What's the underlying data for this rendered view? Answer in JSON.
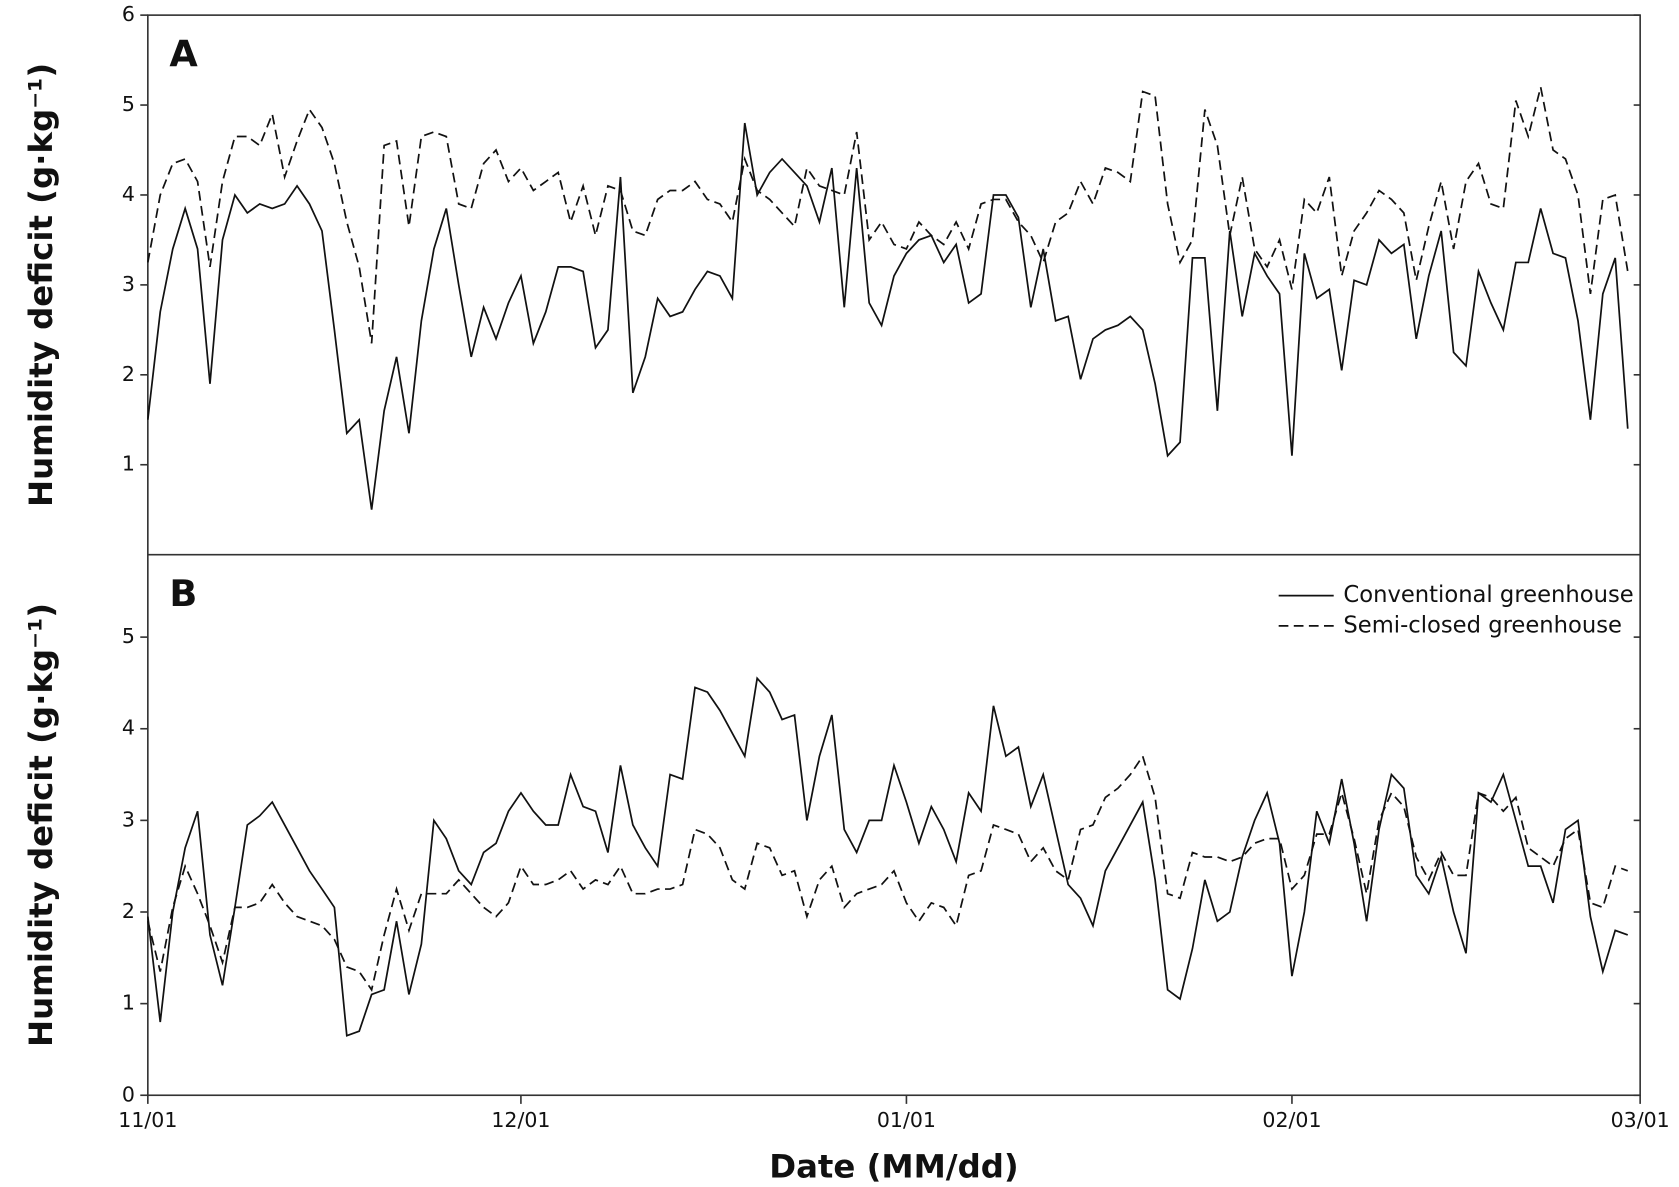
{
  "chart_data": [
    {
      "type": "line",
      "panel_label": "A",
      "y_label": "Humidity deficit (g·kg⁻¹)",
      "x": [
        0,
        1,
        2,
        3,
        4,
        5,
        6,
        7,
        8,
        9,
        10,
        11,
        12,
        13,
        14,
        15,
        16,
        17,
        18,
        19,
        20,
        21,
        22,
        23,
        24,
        25,
        26,
        27,
        28,
        29,
        30,
        31,
        32,
        33,
        34,
        35,
        36,
        37,
        38,
        39,
        40,
        41,
        42,
        43,
        44,
        45,
        46,
        47,
        48,
        49,
        50,
        51,
        52,
        53,
        54,
        55,
        56,
        57,
        58,
        59,
        60,
        61,
        62,
        63,
        64,
        65,
        66,
        67,
        68,
        69,
        70,
        71,
        72,
        73,
        74,
        75,
        76,
        77,
        78,
        79,
        80,
        81,
        82,
        83,
        84,
        85,
        86,
        87,
        88,
        89,
        90,
        91,
        92,
        93,
        94,
        95,
        96,
        97,
        98,
        99,
        100,
        101,
        102,
        103,
        104,
        105,
        106,
        107,
        108,
        109,
        110,
        111,
        112,
        113,
        114,
        115,
        116,
        117,
        118,
        119
      ],
      "xlim": [
        0,
        120
      ],
      "ylim": [
        0,
        6
      ],
      "yticks": [
        1,
        2,
        3,
        4,
        5,
        6
      ],
      "series": [
        {
          "color": "#111111",
          "dashed": false,
          "values": [
            1.5,
            2.7,
            3.4,
            3.85,
            3.4,
            1.9,
            3.5,
            4.0,
            3.8,
            3.9,
            3.85,
            3.9,
            4.1,
            3.9,
            3.6,
            2.5,
            1.35,
            1.5,
            0.5,
            1.6,
            2.2,
            1.35,
            2.6,
            3.4,
            3.85,
            3.0,
            2.2,
            2.75,
            2.4,
            2.8,
            3.1,
            2.35,
            2.7,
            3.2,
            3.2,
            3.15,
            2.3,
            2.5,
            4.2,
            1.8,
            2.2,
            2.85,
            2.65,
            2.7,
            2.95,
            3.15,
            3.1,
            2.85,
            4.8,
            4.0,
            4.25,
            4.4,
            4.25,
            4.1,
            3.7,
            4.3,
            2.75,
            4.3,
            2.8,
            2.55,
            3.1,
            3.35,
            3.5,
            3.55,
            3.25,
            3.45,
            2.8,
            2.9,
            4.0,
            4.0,
            3.75,
            2.75,
            3.4,
            2.6,
            2.65,
            1.95,
            2.4,
            2.5,
            2.55,
            2.65,
            2.5,
            1.9,
            1.1,
            1.25,
            3.3,
            3.3,
            1.6,
            3.6,
            2.65,
            3.35,
            3.1,
            2.9,
            1.1,
            3.35,
            2.85,
            2.95,
            2.05,
            3.05,
            3.0,
            3.5,
            3.35,
            3.45,
            2.4,
            3.1,
            3.6,
            2.25,
            2.1,
            3.15,
            2.8,
            2.5,
            3.25,
            3.25,
            3.85,
            3.35,
            3.3,
            2.6,
            1.5,
            2.9,
            3.3,
            1.4
          ]
        },
        {
          "color": "#111111",
          "dashed": true,
          "values": [
            3.25,
            4.0,
            4.35,
            4.4,
            4.15,
            3.2,
            4.15,
            4.65,
            4.65,
            4.55,
            4.9,
            4.2,
            4.6,
            4.95,
            4.75,
            4.35,
            3.7,
            3.2,
            2.35,
            4.55,
            4.6,
            3.65,
            4.65,
            4.7,
            4.65,
            3.9,
            3.85,
            4.35,
            4.5,
            4.15,
            4.3,
            4.05,
            4.15,
            4.25,
            3.7,
            4.1,
            3.55,
            4.1,
            4.05,
            3.6,
            3.55,
            3.95,
            4.05,
            4.05,
            4.15,
            3.95,
            3.9,
            3.7,
            4.4,
            4.05,
            3.95,
            3.8,
            3.65,
            4.3,
            4.1,
            4.05,
            4.0,
            4.7,
            3.5,
            3.7,
            3.45,
            3.4,
            3.7,
            3.55,
            3.45,
            3.7,
            3.4,
            3.9,
            3.95,
            3.95,
            3.7,
            3.55,
            3.25,
            3.7,
            3.8,
            4.15,
            3.9,
            4.3,
            4.25,
            4.15,
            5.15,
            5.1,
            3.9,
            3.25,
            3.5,
            4.95,
            4.55,
            3.55,
            4.2,
            3.4,
            3.2,
            3.5,
            2.95,
            3.95,
            3.8,
            4.2,
            3.1,
            3.6,
            3.8,
            4.05,
            3.95,
            3.8,
            3.05,
            3.65,
            4.15,
            3.4,
            4.15,
            4.35,
            3.9,
            3.85,
            5.05,
            4.65,
            5.2,
            4.5,
            4.4,
            4.0,
            2.9,
            3.95,
            4.0,
            3.15
          ]
        }
      ]
    },
    {
      "type": "line",
      "panel_label": "B",
      "y_label": "Humidity deficit (g·kg⁻¹)",
      "x_label": "Date (MM/dd)",
      "x": [
        0,
        1,
        2,
        3,
        4,
        5,
        6,
        7,
        8,
        9,
        10,
        11,
        12,
        13,
        14,
        15,
        16,
        17,
        18,
        19,
        20,
        21,
        22,
        23,
        24,
        25,
        26,
        27,
        28,
        29,
        30,
        31,
        32,
        33,
        34,
        35,
        36,
        37,
        38,
        39,
        40,
        41,
        42,
        43,
        44,
        45,
        46,
        47,
        48,
        49,
        50,
        51,
        52,
        53,
        54,
        55,
        56,
        57,
        58,
        59,
        60,
        61,
        62,
        63,
        64,
        65,
        66,
        67,
        68,
        69,
        70,
        71,
        72,
        73,
        74,
        75,
        76,
        77,
        78,
        79,
        80,
        81,
        82,
        83,
        84,
        85,
        86,
        87,
        88,
        89,
        90,
        91,
        92,
        93,
        94,
        95,
        96,
        97,
        98,
        99,
        100,
        101,
        102,
        103,
        104,
        105,
        106,
        107,
        108,
        109,
        110,
        111,
        112,
        113,
        114,
        115,
        116,
        117,
        118,
        119
      ],
      "xlim": [
        0,
        120
      ],
      "xticks": [
        {
          "value": 0,
          "label": "11/01"
        },
        {
          "value": 30,
          "label": "12/01"
        },
        {
          "value": 61,
          "label": "01/01"
        },
        {
          "value": 92,
          "label": "02/01"
        },
        {
          "value": 120,
          "label": "03/01"
        }
      ],
      "ylim": [
        0,
        5.9
      ],
      "yticks": [
        0,
        1,
        2,
        3,
        4,
        5
      ],
      "legend": "upper-right",
      "series": [
        {
          "name": "Conventional greenhouse",
          "color": "#111111",
          "dashed": false,
          "values": [
            1.95,
            0.8,
            2.0,
            2.7,
            3.1,
            1.75,
            1.2,
            2.05,
            2.95,
            3.05,
            3.2,
            2.95,
            2.7,
            2.45,
            2.25,
            2.05,
            0.65,
            0.7,
            1.1,
            1.15,
            1.9,
            1.1,
            1.65,
            3.0,
            2.8,
            2.45,
            2.3,
            2.65,
            2.75,
            3.1,
            3.3,
            3.1,
            2.95,
            2.95,
            3.5,
            3.15,
            3.1,
            2.65,
            3.6,
            2.95,
            2.7,
            2.5,
            3.5,
            3.45,
            4.45,
            4.4,
            4.2,
            3.95,
            3.7,
            4.55,
            4.4,
            4.1,
            4.15,
            3.0,
            3.7,
            4.15,
            2.9,
            2.65,
            3.0,
            3.0,
            3.6,
            3.2,
            2.75,
            3.15,
            2.9,
            2.55,
            3.3,
            3.1,
            4.25,
            3.7,
            3.8,
            3.15,
            3.5,
            2.9,
            2.3,
            2.15,
            1.85,
            2.45,
            2.7,
            2.95,
            3.2,
            2.35,
            1.15,
            1.05,
            1.6,
            2.35,
            1.9,
            2.0,
            2.6,
            3.0,
            3.3,
            2.75,
            1.3,
            2.0,
            3.1,
            2.75,
            3.45,
            2.75,
            1.9,
            2.9,
            3.5,
            3.35,
            2.4,
            2.2,
            2.6,
            2.0,
            1.55,
            3.3,
            3.2,
            3.5,
            3.0,
            2.5,
            2.5,
            2.1,
            2.9,
            3.0,
            1.95,
            1.35,
            1.8,
            1.75
          ]
        },
        {
          "name": "Semi-closed greenhouse",
          "color": "#111111",
          "dashed": true,
          "values": [
            1.9,
            1.35,
            2.05,
            2.5,
            2.2,
            1.85,
            1.45,
            2.05,
            2.05,
            2.1,
            2.3,
            2.1,
            1.95,
            1.9,
            1.85,
            1.7,
            1.4,
            1.35,
            1.15,
            1.75,
            2.25,
            1.8,
            2.2,
            2.2,
            2.2,
            2.35,
            2.2,
            2.05,
            1.95,
            2.1,
            2.5,
            2.3,
            2.3,
            2.35,
            2.45,
            2.25,
            2.35,
            2.3,
            2.5,
            2.2,
            2.2,
            2.25,
            2.25,
            2.3,
            2.9,
            2.85,
            2.7,
            2.35,
            2.25,
            2.75,
            2.7,
            2.4,
            2.45,
            1.95,
            2.35,
            2.5,
            2.05,
            2.2,
            2.25,
            2.3,
            2.45,
            2.1,
            1.9,
            2.1,
            2.05,
            1.85,
            2.4,
            2.45,
            2.95,
            2.9,
            2.85,
            2.55,
            2.7,
            2.45,
            2.35,
            2.9,
            2.95,
            3.25,
            3.35,
            3.5,
            3.7,
            3.25,
            2.2,
            2.15,
            2.65,
            2.6,
            2.6,
            2.55,
            2.6,
            2.75,
            2.8,
            2.8,
            2.25,
            2.4,
            2.85,
            2.85,
            3.3,
            2.8,
            2.2,
            3.0,
            3.3,
            3.15,
            2.6,
            2.35,
            2.65,
            2.4,
            2.4,
            3.3,
            3.25,
            3.1,
            3.25,
            2.7,
            2.6,
            2.5,
            2.8,
            2.9,
            2.1,
            2.05,
            2.5,
            2.45
          ]
        }
      ]
    }
  ]
}
